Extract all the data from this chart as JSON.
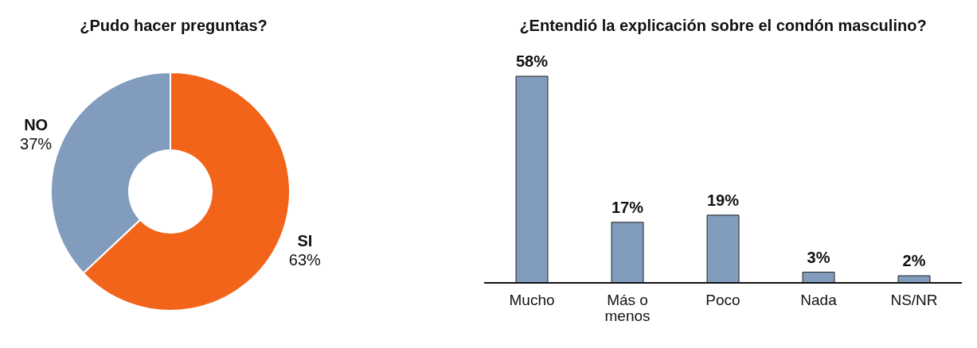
{
  "chart_data": [
    {
      "type": "donut",
      "title": "¿Pudo hacer preguntas?",
      "categories": [
        "SI",
        "NO"
      ],
      "values": [
        63,
        37
      ],
      "value_labels": [
        "63%",
        "37%"
      ],
      "colors": [
        "#f26419",
        "#819cbd"
      ]
    },
    {
      "type": "bar",
      "title": "¿Entendió la explicación sobre el condón masculino?",
      "categories": [
        "Mucho",
        "Más o menos",
        "Poco",
        "Nada",
        "NS/NR"
      ],
      "values": [
        58,
        17,
        19,
        3,
        2
      ],
      "value_labels": [
        "58%",
        "17%",
        "19%",
        "3%",
        "2%"
      ],
      "color": "#819cbd"
    }
  ]
}
